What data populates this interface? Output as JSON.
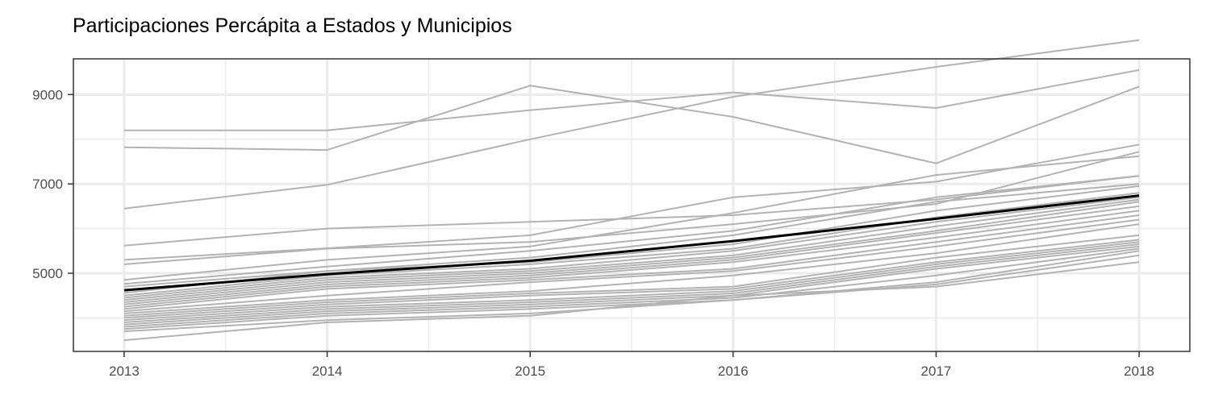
{
  "chart_data": {
    "type": "line",
    "title": "Participaciones Percápita a Estados y Municipios",
    "xlabel": "",
    "ylabel": "",
    "x": [
      2013,
      2014,
      2015,
      2016,
      2017,
      2018
    ],
    "xlim": [
      2012.75,
      2018.25
    ],
    "ylim": [
      3250,
      9800
    ],
    "yticks": [
      5000,
      7000,
      9000
    ],
    "yticks_minor": [
      4000,
      6000,
      8000,
      9000
    ],
    "xticks_minor": [
      2013.5,
      2014.5,
      2015.5,
      2016.5,
      2017.5
    ],
    "grid": true,
    "legend": "none",
    "colors": {
      "background_series": "#b3b3b3",
      "highlight_series": "#000000",
      "grid": "#ebebeb",
      "panel_border": "#333333"
    },
    "series": [
      {
        "values": [
          6450,
          6980,
          8000,
          8950,
          9620,
          10220
        ]
      },
      {
        "values": [
          8200,
          8200,
          8650,
          9050,
          8700,
          9550
        ]
      },
      {
        "values": [
          7820,
          7760,
          9200,
          8500,
          7460,
          9180
        ]
      },
      {
        "values": [
          5620,
          6000,
          6150,
          6300,
          6650,
          7180
        ]
      },
      {
        "values": [
          5300,
          5560,
          5850,
          6700,
          7050,
          7880
        ]
      },
      {
        "values": [
          5200,
          5550,
          5700,
          6100,
          6550,
          7720
        ]
      },
      {
        "values": [
          4850,
          5300,
          5600,
          6350,
          7200,
          7620
        ]
      },
      {
        "values": [
          4760,
          5150,
          5500,
          5950,
          6700,
          7180
        ]
      },
      {
        "values": [
          4700,
          5050,
          5350,
          5850,
          6600,
          7000
        ]
      },
      {
        "values": [
          4560,
          5050,
          5250,
          5650,
          6400,
          6950
        ]
      },
      {
        "values": [
          4500,
          4950,
          5200,
          5550,
          6250,
          6800
        ]
      },
      {
        "values": [
          4450,
          4900,
          5100,
          5500,
          6150,
          6700
        ]
      },
      {
        "values": [
          4400,
          4850,
          5050,
          5400,
          6050,
          6650
        ]
      },
      {
        "values": [
          4350,
          4800,
          5000,
          5350,
          5950,
          6600
        ]
      },
      {
        "values": [
          4300,
          4750,
          4950,
          5300,
          5900,
          6500
        ]
      },
      {
        "values": [
          4250,
          4700,
          4900,
          5250,
          5800,
          6400
        ]
      },
      {
        "values": [
          4200,
          4650,
          4850,
          5100,
          5700,
          6300
        ]
      },
      {
        "values": [
          4150,
          4500,
          4800,
          5050,
          5600,
          6200
        ]
      },
      {
        "values": [
          4100,
          4400,
          4600,
          4950,
          5450,
          6100
        ]
      },
      {
        "values": [
          4050,
          4350,
          4550,
          4700,
          5350,
          5850
        ]
      },
      {
        "values": [
          4000,
          4300,
          4500,
          4650,
          5250,
          5750
        ]
      },
      {
        "values": [
          3950,
          4250,
          4400,
          4600,
          5200,
          5700
        ]
      },
      {
        "values": [
          3900,
          4200,
          4350,
          4550,
          5150,
          5650
        ]
      },
      {
        "values": [
          3850,
          4150,
          4300,
          4500,
          5100,
          5600
        ]
      },
      {
        "values": [
          3800,
          4100,
          4250,
          4450,
          4950,
          5550
        ]
      },
      {
        "values": [
          3750,
          4050,
          4200,
          4400,
          4800,
          5500
        ]
      },
      {
        "values": [
          3700,
          3950,
          4100,
          4400,
          4750,
          5400
        ]
      },
      {
        "values": [
          3500,
          3900,
          4050,
          4500,
          4700,
          5250
        ]
      },
      {
        "values": [
          4620,
          4980,
          5280,
          5720,
          6220,
          6740
        ],
        "highlight": true
      }
    ]
  }
}
